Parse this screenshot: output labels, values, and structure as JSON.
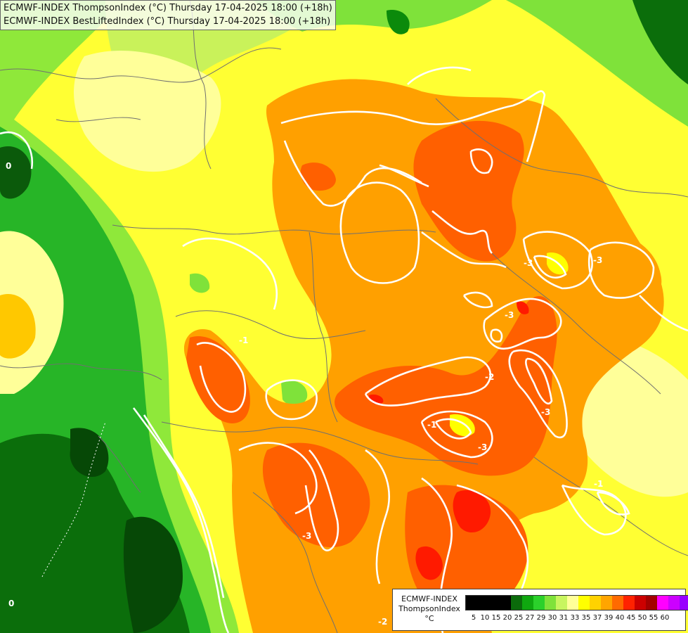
{
  "header": {
    "line1": "ECMWF-INDEX ThompsonIndex (°C) Thursday 17-04-2025 18:00 (+18h)",
    "line2": "ECMWF-INDEX BestLiftedIndex (°C) Thursday 17-04-2025 18:00 (+18h)"
  },
  "legend": {
    "model": "ECMWF-INDEX",
    "parameter": "ThompsonIndex",
    "unit": "°C",
    "colors": [
      "#000000",
      "#000000",
      "#000000",
      "#000000",
      "#0b6b0b",
      "#0fa80f",
      "#2bd12b",
      "#7fe23a",
      "#c8f55f",
      "#ffff99",
      "#ffff00",
      "#ffd200",
      "#ffa500",
      "#ff6a00",
      "#ff2200",
      "#cc0000",
      "#a30000",
      "#ff00ff",
      "#cc00ff",
      "#9900ff",
      "#6600ff",
      "#0000ff"
    ],
    "ticks": [
      "5",
      "10",
      "15",
      "20",
      "25",
      "27",
      "29",
      "30",
      "31",
      "33",
      "35",
      "37",
      "39",
      "40",
      "45",
      "50",
      "55",
      "60"
    ]
  },
  "contour_labels": [
    "0",
    "0",
    "-1",
    "-3",
    "-3",
    "-3",
    "-3",
    "-1",
    "-2",
    "-1",
    "-3",
    "-3",
    "-2"
  ],
  "palette": {
    "dark_green": "#0b5a0b",
    "green": "#27a827",
    "light_green": "#8fe83a",
    "yellow_green": "#c9f25a",
    "pale_yellow": "#ffff99",
    "yellow": "#ffff00",
    "light_orange": "#ffc800",
    "orange": "#ff9900",
    "dark_orange": "#ff6000",
    "red": "#ff1a00",
    "contour": "#ffffff",
    "borders": "#666666"
  }
}
